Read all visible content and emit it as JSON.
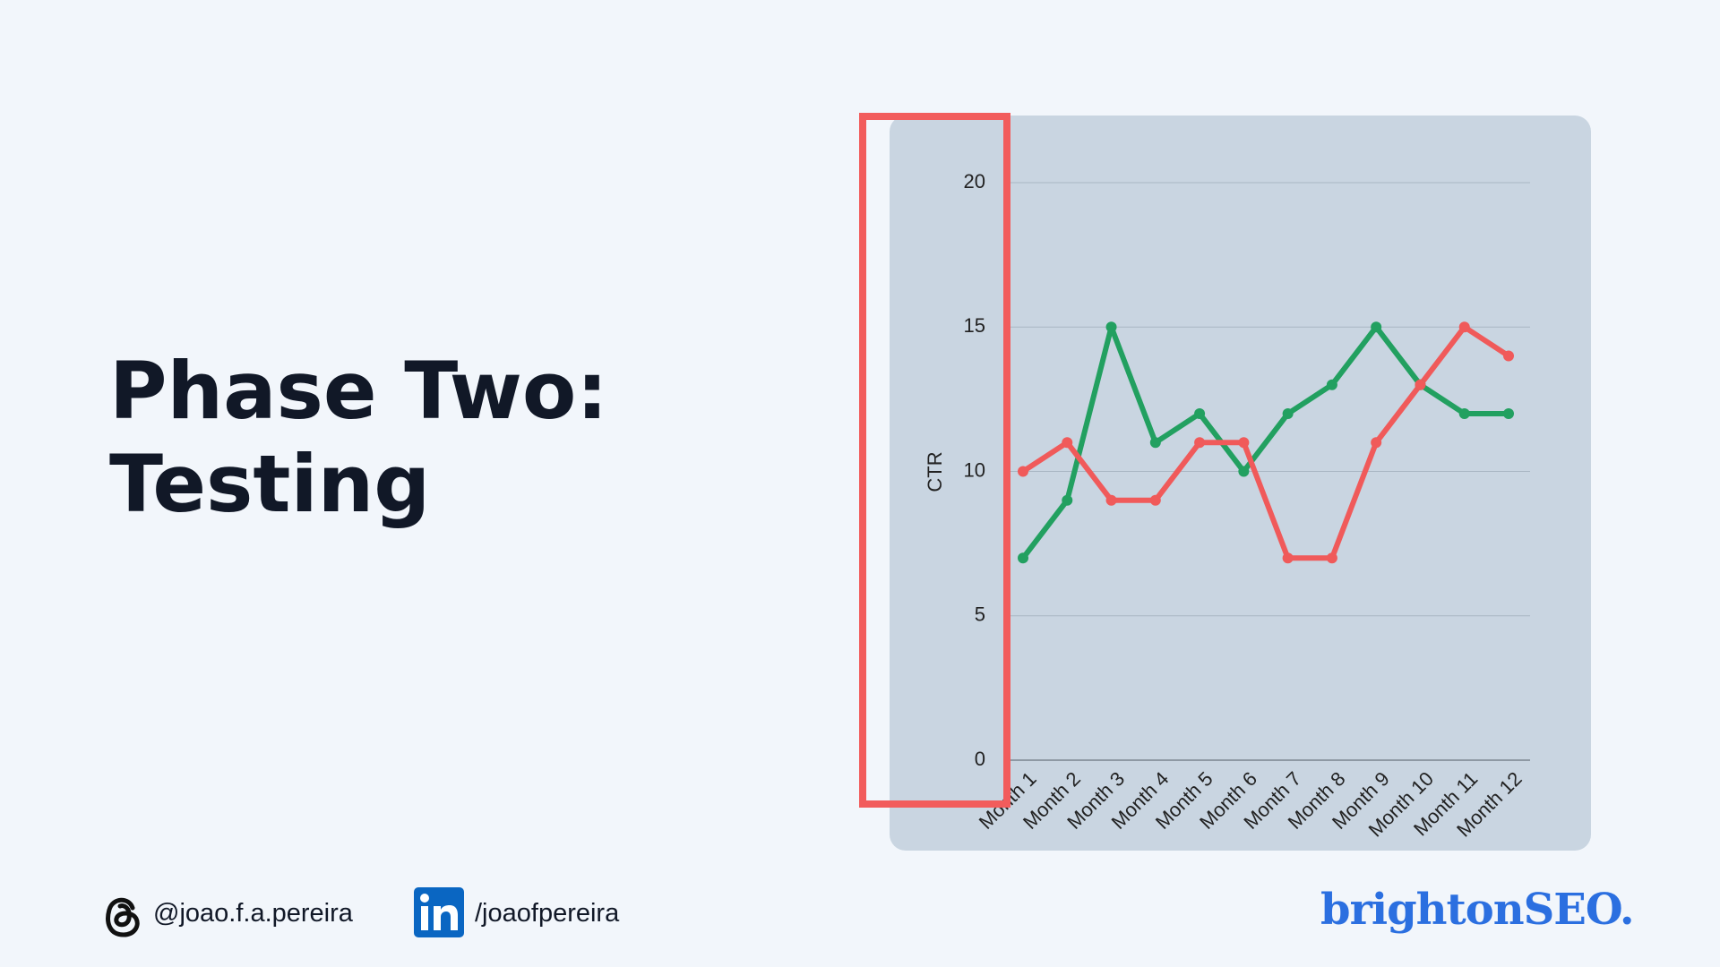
{
  "slide": {
    "title_line1": "Phase Two:",
    "title_line2": "Testing",
    "threads_handle": "@joao.f.a.pereira",
    "linkedin_handle": "/joaofpereira",
    "brand": "brightonSEO."
  },
  "chart_data": {
    "type": "line",
    "y_label": "CTR",
    "categories": [
      "Month 1",
      "Month 2",
      "Month 3",
      "Month 4",
      "Month 5",
      "Month 6",
      "Month 7",
      "Month 8",
      "Month 9",
      "Month 10",
      "Month 11",
      "Month 12"
    ],
    "series": [
      {
        "color": "#22a060",
        "values": [
          7,
          9,
          15,
          11,
          12,
          10,
          12,
          13,
          15,
          13,
          12,
          12
        ]
      },
      {
        "color": "#f05a5a",
        "values": [
          10,
          11,
          9,
          9,
          11,
          11,
          7,
          7,
          11,
          13,
          15,
          14
        ]
      }
    ],
    "ylim": [
      0,
      20
    ],
    "yticks": [
      0,
      5,
      10,
      15,
      20
    ],
    "grid": true
  }
}
